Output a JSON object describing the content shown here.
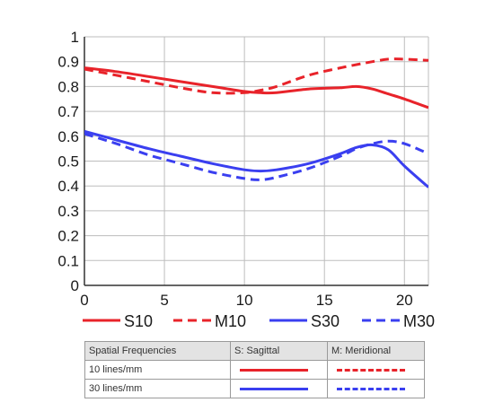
{
  "colors": {
    "red": "#e8232a",
    "blue": "#3a3ff0",
    "grid": "#bdbdbd",
    "axis": "#333333"
  },
  "chart_data": {
    "type": "line",
    "xlim": [
      0,
      21.5
    ],
    "ylim": [
      0,
      1
    ],
    "x_ticks": [
      "0",
      "5",
      "10",
      "15",
      "20"
    ],
    "y_ticks": [
      "0",
      "0.1",
      "0.2",
      "0.3",
      "0.4",
      "0.5",
      "0.6",
      "0.7",
      "0.8",
      "0.9",
      "1"
    ],
    "grid": true,
    "legend_position": "bottom",
    "series": [
      {
        "name": "S10",
        "color": "red",
        "style": "solid",
        "x": [
          0,
          2,
          4,
          6,
          8,
          10,
          11,
          12,
          14,
          16,
          17,
          18,
          19,
          20,
          21.5
        ],
        "y": [
          0.875,
          0.86,
          0.84,
          0.82,
          0.8,
          0.78,
          0.775,
          0.775,
          0.79,
          0.795,
          0.8,
          0.79,
          0.77,
          0.75,
          0.715
        ]
      },
      {
        "name": "M10",
        "color": "red",
        "style": "dashed",
        "x": [
          0,
          2,
          4,
          6,
          8,
          10,
          11,
          12,
          14,
          16,
          18,
          19,
          20,
          21.5
        ],
        "y": [
          0.87,
          0.845,
          0.82,
          0.795,
          0.775,
          0.775,
          0.785,
          0.8,
          0.845,
          0.875,
          0.9,
          0.91,
          0.91,
          0.905
        ]
      },
      {
        "name": "S30",
        "color": "blue",
        "style": "solid",
        "x": [
          0,
          2,
          4,
          6,
          8,
          10,
          11,
          12,
          14,
          16,
          17,
          18,
          19,
          20,
          21.5
        ],
        "y": [
          0.62,
          0.585,
          0.55,
          0.52,
          0.49,
          0.465,
          0.46,
          0.465,
          0.49,
          0.53,
          0.555,
          0.565,
          0.545,
          0.48,
          0.395
        ]
      },
      {
        "name": "M30",
        "color": "blue",
        "style": "dashed",
        "x": [
          0,
          2,
          4,
          6,
          8,
          10,
          11,
          12,
          14,
          16,
          17,
          18,
          19,
          20,
          21.5
        ],
        "y": [
          0.61,
          0.57,
          0.525,
          0.49,
          0.455,
          0.43,
          0.425,
          0.435,
          0.47,
          0.52,
          0.55,
          0.57,
          0.58,
          0.57,
          0.53
        ]
      }
    ]
  },
  "legend_table": {
    "header": [
      "Spatial Frequencies",
      "S: Sagittal",
      "M: Meridional"
    ],
    "rows": [
      {
        "label": "10 lines/mm",
        "color": "red"
      },
      {
        "label": "30 lines/mm",
        "color": "blue"
      }
    ]
  }
}
